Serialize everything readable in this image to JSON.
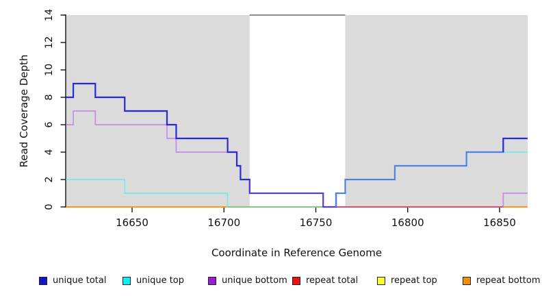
{
  "figure": {
    "x_axis_title": "Coordinate in Reference Genome",
    "y_axis_title": "Read Coverage Depth"
  },
  "legend": {
    "items": [
      {
        "label": "unique total",
        "color": "#1414CC"
      },
      {
        "label": "unique top",
        "color": "#00F5F5"
      },
      {
        "label": "unique bottom",
        "color": "#9A1FD0"
      },
      {
        "label": "repeat total",
        "color": "#EE1111"
      },
      {
        "label": "repeat top",
        "color": "#FCFC2F"
      },
      {
        "label": "repeat bottom",
        "color": "#F29100"
      }
    ]
  },
  "chart_data": {
    "type": "line",
    "step_mode": "hold-until-next-x",
    "title": "",
    "xlabel": "Coordinate in Reference Genome",
    "ylabel": "Read Coverage Depth",
    "x_range": [
      16614,
      16866
    ],
    "ylim": [
      0,
      14
    ],
    "x_ticks": [
      16650,
      16700,
      16750,
      16800,
      16850
    ],
    "y_ticks": [
      0,
      2,
      4,
      6,
      8,
      10,
      12,
      14
    ],
    "grid": false,
    "legend_position": "bottom",
    "shaded_regions": [
      [
        16614,
        16714
      ],
      [
        16766,
        16866
      ]
    ],
    "unshaded_gap": [
      16714,
      16766
    ],
    "background_band_color": "#DBDBDB",
    "series": [
      {
        "name": "unique total",
        "color": "#1414CC",
        "points": [
          [
            16614,
            8
          ],
          [
            16618,
            9
          ],
          [
            16630,
            8
          ],
          [
            16646,
            7
          ],
          [
            16669,
            6
          ],
          [
            16674,
            5
          ],
          [
            16702,
            4
          ],
          [
            16707,
            3
          ],
          [
            16709,
            2
          ],
          [
            16714,
            1
          ],
          [
            16754,
            0
          ],
          [
            16761,
            1
          ],
          [
            16766,
            2
          ],
          [
            16793,
            3
          ],
          [
            16832,
            4
          ],
          [
            16852,
            5
          ],
          [
            16866,
            5
          ]
        ]
      },
      {
        "name": "unique top",
        "color": "#00F5F5",
        "points": [
          [
            16614,
            2
          ],
          [
            16646,
            1
          ],
          [
            16702,
            0
          ],
          [
            16761,
            1
          ],
          [
            16766,
            2
          ],
          [
            16793,
            3
          ],
          [
            16832,
            4
          ],
          [
            16866,
            4
          ]
        ]
      },
      {
        "name": "unique bottom",
        "color": "#9A1FD0",
        "points": [
          [
            16614,
            6
          ],
          [
            16618,
            7
          ],
          [
            16630,
            6
          ],
          [
            16669,
            5
          ],
          [
            16674,
            4
          ],
          [
            16707,
            3
          ],
          [
            16709,
            2
          ],
          [
            16714,
            1
          ],
          [
            16754,
            0
          ],
          [
            16852,
            1
          ],
          [
            16866,
            1
          ]
        ]
      },
      {
        "name": "repeat total",
        "color": "#EE1111",
        "points": [
          [
            16614,
            0
          ],
          [
            16866,
            0
          ]
        ]
      },
      {
        "name": "repeat top",
        "color": "#FCFC2F",
        "points": [
          [
            16614,
            0
          ],
          [
            16866,
            0
          ]
        ]
      },
      {
        "name": "repeat bottom",
        "color": "#F29100",
        "points": [
          [
            16614,
            0
          ],
          [
            16866,
            0
          ]
        ]
      }
    ]
  },
  "render_hints": {
    "axis_color": "#000000",
    "top_border_color": "#8C8C8C",
    "series_display": {
      "unique top": "#7BE8EC",
      "unique bottom": "#C58BE8",
      "repeat total": "#DD2222",
      "repeat top": "#FCFC2F",
      "repeat bottom": "#FF9412"
    },
    "unique_total_segments": [
      {
        "from": 16614,
        "to": 16714,
        "color": "#2A2ADD"
      },
      {
        "from": 16714,
        "to": 16761,
        "color": "#5A3ADF"
      },
      {
        "from": 16761,
        "to": 16852,
        "color": "#4C82E8"
      },
      {
        "from": 16852,
        "to": 16866,
        "color": "#2A2ADD"
      }
    ],
    "zero_line_overlays": [
      {
        "from": 16702,
        "to": 16754,
        "color": "#7CC87C"
      },
      {
        "from": 16761,
        "to": 16852,
        "color": "#D84868"
      }
    ]
  }
}
